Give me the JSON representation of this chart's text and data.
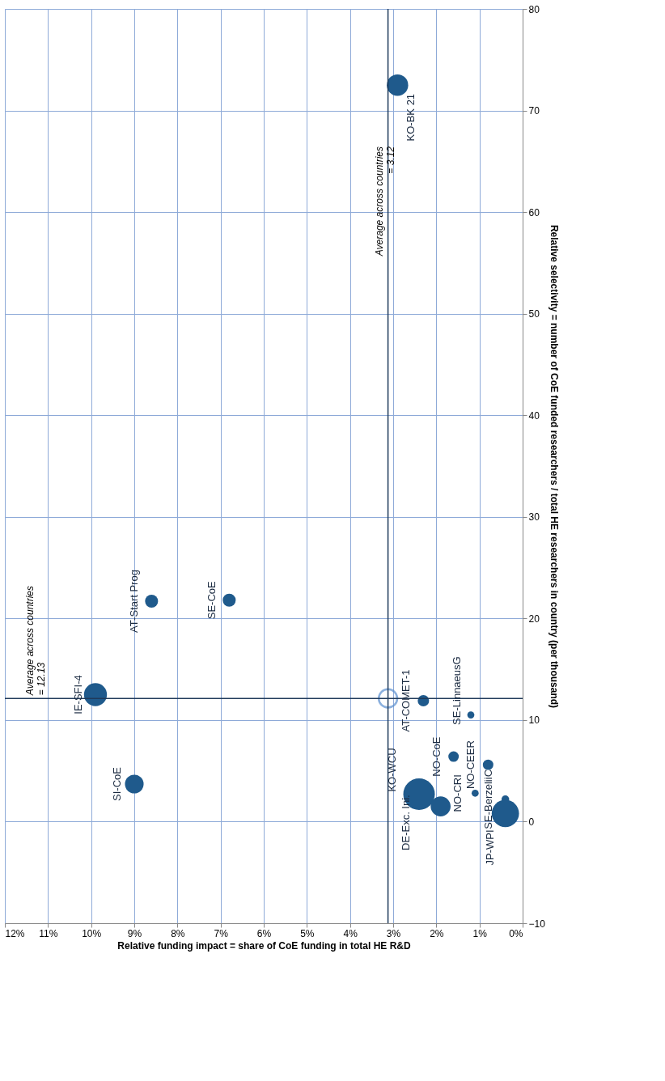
{
  "chart_data": {
    "type": "bubble",
    "xlabel": "Relative funding impact = share of CoE funding in total HE R&D",
    "ylabel": "Relative selectivity = number of CoE funded researchers / total HE researchers in country (per thousand)",
    "xlim": [
      12,
      0
    ],
    "xticks": [
      {
        "value": 12,
        "label": "12%"
      },
      {
        "value": 11,
        "label": "11%"
      },
      {
        "value": 10,
        "label": "10%"
      },
      {
        "value": 9,
        "label": "9%"
      },
      {
        "value": 8,
        "label": "8%"
      },
      {
        "value": 7,
        "label": "7%"
      },
      {
        "value": 6,
        "label": "6%"
      },
      {
        "value": 5,
        "label": "5%"
      },
      {
        "value": 4,
        "label": "4%"
      },
      {
        "value": 3,
        "label": "3%"
      },
      {
        "value": 2,
        "label": "2%"
      },
      {
        "value": 1,
        "label": "1%"
      },
      {
        "value": 0,
        "label": "0%"
      }
    ],
    "ylim": [
      -10,
      80
    ],
    "yticks": [
      -10,
      0,
      10,
      20,
      30,
      40,
      50,
      60,
      70,
      80
    ],
    "grid": true,
    "series": [
      {
        "type": "bubble",
        "color": "#1f5a8c",
        "x": [
          2.9,
          1.2,
          2.3,
          9.9,
          8.6,
          6.8,
          9.0,
          1.6,
          0.8,
          2.4,
          1.1,
          1.9,
          0.4,
          0.4
        ],
        "values": [
          72.5,
          10.5,
          11.9,
          12.5,
          21.7,
          21.8,
          3.7,
          6.4,
          5.6,
          2.7,
          2.8,
          1.5,
          2.2,
          0.8
        ],
        "sizes": [
          0.46,
          0.05,
          0.13,
          0.53,
          0.17,
          0.17,
          0.35,
          0.11,
          0.11,
          1,
          0.05,
          0.4,
          0.06,
          0.75
        ]
      },
      {
        "type": "scatter",
        "color": "#5b8fd0",
        "marker": "circle",
        "x": [
          3.12
        ],
        "values": [
          12.13
        ]
      }
    ],
    "ref_lines": [
      {
        "axis": "x",
        "value": 3.12,
        "label": "Average across countries = 3.12",
        "color": "#1f3a5a"
      },
      {
        "axis": "y",
        "value": 12.13,
        "label": "Average across countries = 12.13",
        "color": "#1f3a5a"
      }
    ],
    "annotations": [
      {
        "text": "KO-BK 21",
        "x": 2.9,
        "y": 72.5
      },
      {
        "text": "SE-LinnaeusG",
        "x": 1.2,
        "y": 10.5
      },
      {
        "text": "AT-COMET-1",
        "x": 2.3,
        "y": 11.9
      },
      {
        "text": "IE-SFI-4",
        "x": 9.9,
        "y": 12.5
      },
      {
        "text": "AT-Start Prog",
        "x": 8.6,
        "y": 21.7
      },
      {
        "text": "SE-CoE",
        "x": 6.8,
        "y": 21.8
      },
      {
        "text": "SI-CoE",
        "x": 9.0,
        "y": 3.7
      },
      {
        "text": "NO-CoE",
        "x": 1.6,
        "y": 6.4
      },
      {
        "text": "NO-CEER",
        "x": 0.8,
        "y": 5.6
      },
      {
        "text": "KO-WCU",
        "x": 2.4,
        "y": 2.7
      },
      {
        "text": "NO-CRI",
        "x": 1.1,
        "y": 2.8
      },
      {
        "text": "DE-Exc. Ini.",
        "x": 1.9,
        "y": 1.5
      },
      {
        "text": "SE-BerzeliiC",
        "x": 0.4,
        "y": 2.2
      },
      {
        "text": "JP-WPI",
        "x": 0.4,
        "y": 0.8
      }
    ]
  }
}
